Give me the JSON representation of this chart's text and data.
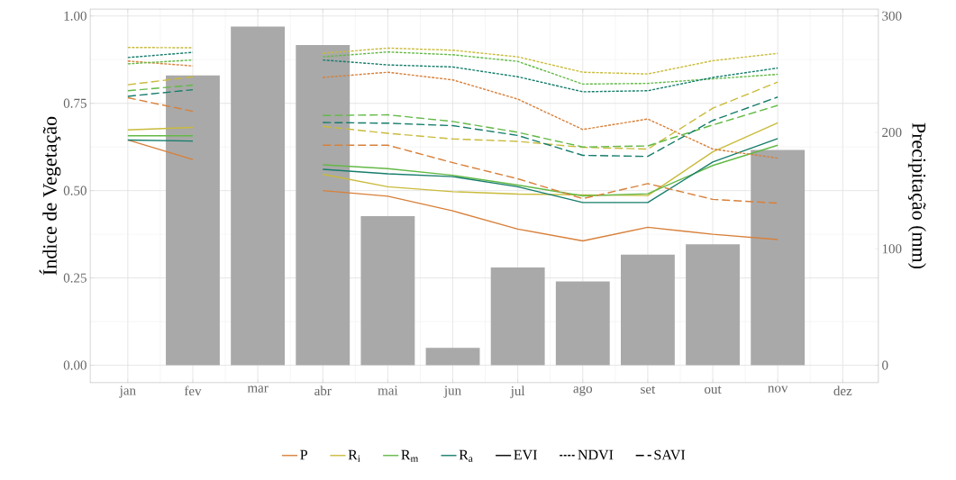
{
  "chart_data": {
    "type": "line",
    "ylabel": "Índice de Vegetação",
    "y2label": "Precipitação (mm)",
    "categories": [
      "jan",
      "fev",
      "mar",
      "abr",
      "mai",
      "jun",
      "jul",
      "ago",
      "set",
      "out",
      "nov",
      "dez"
    ],
    "ylim": [
      -0.05,
      1.02
    ],
    "yticks": [
      {
        "value": 0,
        "label": "0.00"
      },
      {
        "value": 0.25,
        "label": "0.25"
      },
      {
        "value": 0.5,
        "label": "0.50"
      },
      {
        "value": 0.75,
        "label": "0.75"
      },
      {
        "value": 1,
        "label": "1.00"
      }
    ],
    "y2lim": [
      -15,
      306
    ],
    "y2ticks": [
      0,
      100,
      200,
      300
    ],
    "grid": true,
    "legend": "bottom",
    "series": [
      {
        "type": "bar",
        "axis": "y2",
        "color": "#a9a9a9",
        "values": [
          null,
          249,
          291,
          275,
          128,
          15,
          84,
          72,
          95,
          104,
          185,
          null
        ]
      },
      {
        "color": "#d8803a",
        "line_style": "solid",
        "values": [
          0.645,
          0.589,
          null,
          0.5,
          0.484,
          0.442,
          0.39,
          0.356,
          0.395,
          0.375,
          0.36,
          null
        ]
      },
      {
        "color": "#c9bb3c",
        "line_style": "solid",
        "values": [
          0.674,
          0.681,
          null,
          0.547,
          0.511,
          0.497,
          0.49,
          0.488,
          0.486,
          0.611,
          0.694,
          null
        ]
      },
      {
        "color": "#63b946",
        "line_style": "solid",
        "values": [
          0.657,
          0.657,
          null,
          0.574,
          0.563,
          0.544,
          0.516,
          0.485,
          0.491,
          0.572,
          0.63,
          null
        ]
      },
      {
        "color": "#167d6c",
        "line_style": "solid",
        "values": [
          0.645,
          0.642,
          null,
          0.561,
          0.548,
          0.54,
          0.511,
          0.466,
          0.466,
          0.582,
          0.649,
          null
        ]
      },
      {
        "color": "#d8803a",
        "line_style": "dotted",
        "values": [
          0.871,
          0.857,
          null,
          0.824,
          0.839,
          0.817,
          0.762,
          0.675,
          0.705,
          0.619,
          0.593,
          null
        ]
      },
      {
        "color": "#c9bb3c",
        "line_style": "dotted",
        "values": [
          0.91,
          0.909,
          null,
          0.893,
          0.908,
          0.902,
          0.883,
          0.839,
          0.834,
          0.872,
          0.893,
          null
        ]
      },
      {
        "color": "#63b946",
        "line_style": "dotted",
        "values": [
          0.863,
          0.874,
          null,
          0.883,
          0.897,
          0.889,
          0.87,
          0.805,
          0.807,
          0.82,
          0.833,
          null
        ]
      },
      {
        "color": "#167d6c",
        "line_style": "dotted",
        "values": [
          0.881,
          0.896,
          null,
          0.874,
          0.86,
          0.854,
          0.826,
          0.783,
          0.786,
          0.824,
          0.851,
          null
        ]
      },
      {
        "color": "#d8803a",
        "line_style": "dashed",
        "values": [
          0.766,
          0.727,
          null,
          0.63,
          0.63,
          0.58,
          0.534,
          0.477,
          0.52,
          0.475,
          0.464,
          null
        ]
      },
      {
        "color": "#c9bb3c",
        "line_style": "dashed",
        "values": [
          0.803,
          0.826,
          null,
          0.684,
          0.664,
          0.648,
          0.641,
          0.624,
          0.619,
          0.736,
          0.811,
          null
        ]
      },
      {
        "color": "#63b946",
        "line_style": "dashed",
        "values": [
          0.786,
          0.802,
          null,
          0.715,
          0.717,
          0.698,
          0.667,
          0.625,
          0.628,
          0.688,
          0.744,
          null
        ]
      },
      {
        "color": "#167d6c",
        "line_style": "dashed",
        "values": [
          0.77,
          0.789,
          null,
          0.695,
          0.693,
          0.686,
          0.658,
          0.601,
          0.598,
          0.701,
          0.768,
          null
        ]
      },
      {
        "name": "P",
        "color": "#d8803a",
        "values": [
          null,
          null,
          null,
          null,
          null,
          null,
          null,
          null,
          null,
          null,
          null,
          null
        ]
      },
      {
        "name": "R$_{i}$",
        "color": "#c9bb3c",
        "values": [
          null,
          null,
          null,
          null,
          null,
          null,
          null,
          null,
          null,
          null,
          null,
          null
        ]
      },
      {
        "name": "R$_{m}$",
        "color": "#63b946",
        "values": [
          null,
          null,
          null,
          null,
          null,
          null,
          null,
          null,
          null,
          null,
          null,
          null
        ]
      },
      {
        "name": "R$_{a}$",
        "color": "#167d6c",
        "values": [
          null,
          null,
          null,
          null,
          null,
          null,
          null,
          null,
          null,
          null,
          null,
          null
        ]
      },
      {
        "name": "EVI",
        "color": "#000000",
        "line_style": "solid",
        "values": [
          null,
          null,
          null,
          null,
          null,
          null,
          null,
          null,
          null,
          null,
          null,
          null
        ]
      },
      {
        "name": "NDVI",
        "color": "#000000",
        "line_style": "dotted",
        "values": [
          null,
          null,
          null,
          null,
          null,
          null,
          null,
          null,
          null,
          null,
          null,
          null
        ]
      },
      {
        "name": "SAVI",
        "color": "#000000",
        "line_style": "dashed",
        "values": [
          null,
          null,
          null,
          null,
          null,
          null,
          null,
          null,
          null,
          null,
          null,
          null
        ]
      }
    ]
  }
}
